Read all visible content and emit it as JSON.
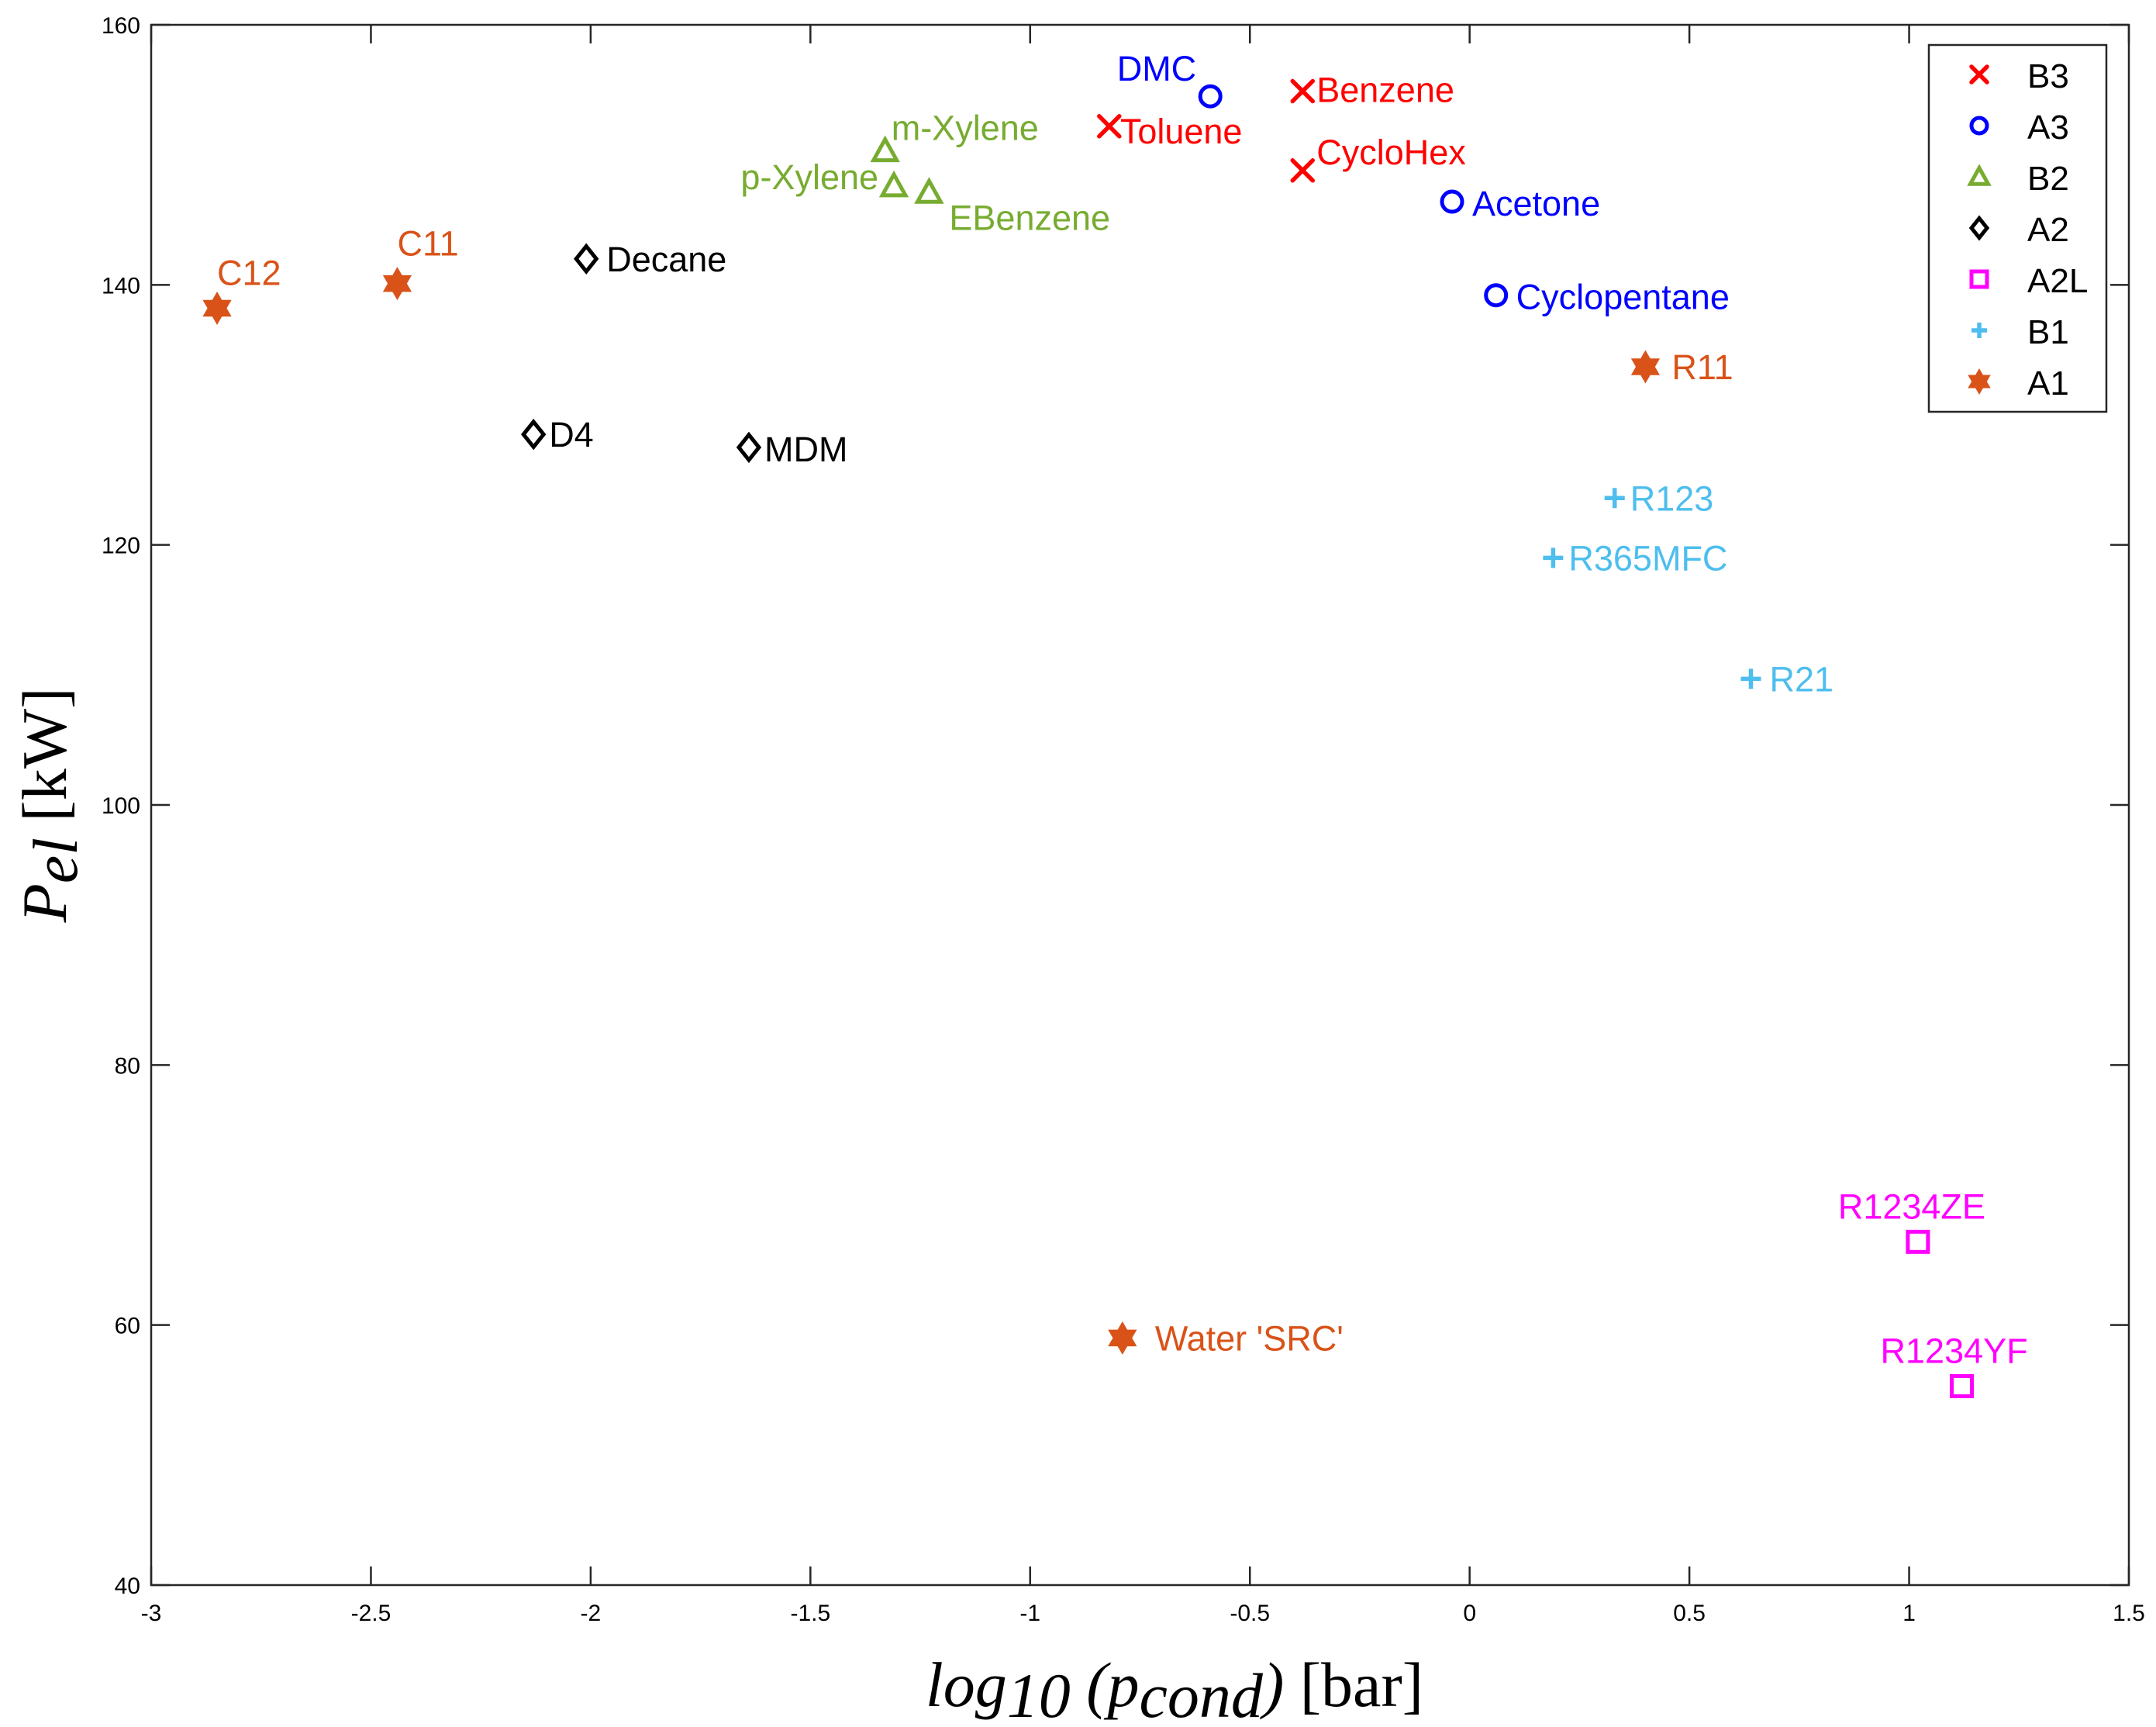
{
  "chart_data": {
    "type": "scatter",
    "title": "",
    "xlabel": {
      "main": "log",
      "sub": "10",
      "mid": " (p",
      "sub2": "cond",
      "close": ")",
      "unit": " [bar]"
    },
    "ylabel": {
      "main": "P",
      "sub": "el",
      "unit": " [kW]"
    },
    "xlim": [
      -3,
      1.5
    ],
    "ylim": [
      40,
      160
    ],
    "xticks": [
      -3,
      -2.5,
      -2,
      -1.5,
      -1,
      -0.5,
      0,
      0.5,
      1,
      1.5
    ],
    "xtick_labels": [
      "-3",
      "-2.5",
      "-2",
      "-1.5",
      "-1",
      "-0.5",
      "0",
      "0.5",
      "1",
      "1.5"
    ],
    "yticks": [
      40,
      60,
      80,
      100,
      120,
      140,
      160
    ],
    "ytick_labels": [
      "40",
      "60",
      "80",
      "100",
      "120",
      "140",
      "160"
    ],
    "grid": false,
    "legend_position": "top-right",
    "series": [
      {
        "name": "B3",
        "marker": "x",
        "color": "#ff0000",
        "points": [
          {
            "label": "Benzene",
            "x": -0.38,
            "y": 154.9
          },
          {
            "label": "Toluene",
            "x": -0.82,
            "y": 152.2
          },
          {
            "label": "CycloHex",
            "x": -0.38,
            "y": 148.8
          }
        ]
      },
      {
        "name": "A3",
        "marker": "circle",
        "color": "#0000ff",
        "points": [
          {
            "label": "DMC",
            "x": -0.59,
            "y": 154.5
          },
          {
            "label": "Acetone",
            "x": -0.04,
            "y": 146.4
          },
          {
            "label": "Cyclopentane",
            "x": 0.06,
            "y": 139.2
          }
        ]
      },
      {
        "name": "B2",
        "marker": "triangle",
        "color": "#77ac30",
        "points": [
          {
            "label": "m-Xylene",
            "x": -1.33,
            "y": 150.3
          },
          {
            "label": "p-Xylene",
            "x": -1.31,
            "y": 147.6
          },
          {
            "label": "EBenzene",
            "x": -1.23,
            "y": 147.1
          }
        ]
      },
      {
        "name": "A2",
        "marker": "diamond",
        "color": "#000000",
        "points": [
          {
            "label": "Decane",
            "x": -2.01,
            "y": 142.0
          },
          {
            "label": "D4",
            "x": -2.13,
            "y": 128.5
          },
          {
            "label": "MDM",
            "x": -1.64,
            "y": 127.5
          }
        ]
      },
      {
        "name": "A2L",
        "marker": "square",
        "color": "#ff00ff",
        "points": [
          {
            "label": "R1234ZE",
            "x": 1.02,
            "y": 66.4
          },
          {
            "label": "R1234YF",
            "x": 1.12,
            "y": 55.3
          }
        ]
      },
      {
        "name": "B1",
        "marker": "plus",
        "color": "#4dbeee",
        "points": [
          {
            "label": "R123",
            "x": 0.33,
            "y": 123.6
          },
          {
            "label": "R365MFC",
            "x": 0.19,
            "y": 119.0
          },
          {
            "label": "R21",
            "x": 0.64,
            "y": 109.7
          }
        ]
      },
      {
        "name": "A1",
        "marker": "hexagram",
        "color": "#d95319",
        "points": [
          {
            "label": "C12",
            "x": -2.85,
            "y": 138.2
          },
          {
            "label": "C11",
            "x": -2.44,
            "y": 140.1
          },
          {
            "label": "R11",
            "x": 0.4,
            "y": 133.7
          },
          {
            "label": "Water 'SRC'",
            "x": -0.79,
            "y": 59.0
          }
        ]
      }
    ]
  }
}
